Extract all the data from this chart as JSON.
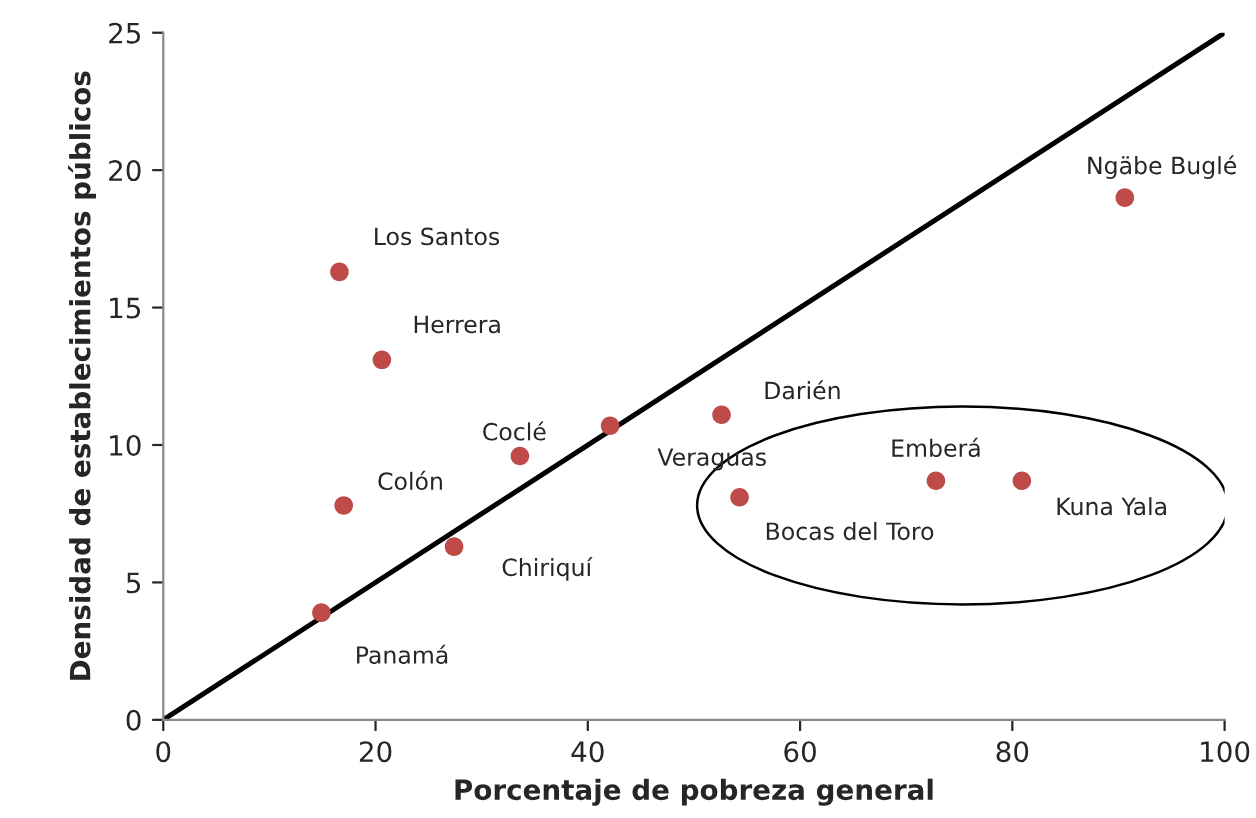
{
  "chart_data": {
    "type": "scatter",
    "xlabel": "Porcentaje de pobreza general",
    "ylabel": "Densidad de establecimientos públicos",
    "xlim": [
      0,
      100
    ],
    "ylim": [
      0,
      25
    ],
    "xticks": [
      0,
      20,
      40,
      60,
      80,
      100
    ],
    "yticks": [
      0,
      5,
      10,
      15,
      20,
      25
    ],
    "grid": false,
    "legend": false,
    "marker": "circle",
    "series": [
      {
        "color": "#be4b48",
        "x": [
          14.9,
          16.6,
          20.6,
          17.0,
          27.4,
          33.6,
          42.1,
          52.6,
          54.3,
          72.8,
          80.9,
          90.6
        ],
        "values": [
          3.9,
          16.3,
          13.1,
          7.8,
          6.3,
          9.6,
          10.7,
          11.1,
          8.1,
          8.7,
          8.7,
          19.0
        ]
      },
      {
        "type": "line",
        "color": "#000000",
        "x": [
          0,
          100
        ],
        "values": [
          0,
          25
        ],
        "line_style": "solid",
        "marker": "none"
      }
    ],
    "annotations": [
      {
        "text": "Panamá",
        "x": 14.9,
        "y": 3.9
      },
      {
        "text": "Los Santos",
        "x": 16.6,
        "y": 16.3
      },
      {
        "text": "Herrera",
        "x": 20.6,
        "y": 13.1
      },
      {
        "text": "Colón",
        "x": 17.0,
        "y": 7.8
      },
      {
        "text": "Chiriquí",
        "x": 27.4,
        "y": 6.3
      },
      {
        "text": "Coclé",
        "x": 33.6,
        "y": 9.6
      },
      {
        "text": "Veraguas",
        "x": 42.1,
        "y": 10.7
      },
      {
        "text": "Darién",
        "x": 52.6,
        "y": 11.1
      },
      {
        "text": "Bocas del Toro",
        "x": 54.3,
        "y": 8.1
      },
      {
        "text": "Emberá",
        "x": 72.8,
        "y": 8.7
      },
      {
        "text": "Kuna Yala",
        "x": 80.9,
        "y": 8.7
      },
      {
        "text": "Ngäbe Buglé",
        "x": 90.6,
        "y": 19.0
      }
    ]
  }
}
